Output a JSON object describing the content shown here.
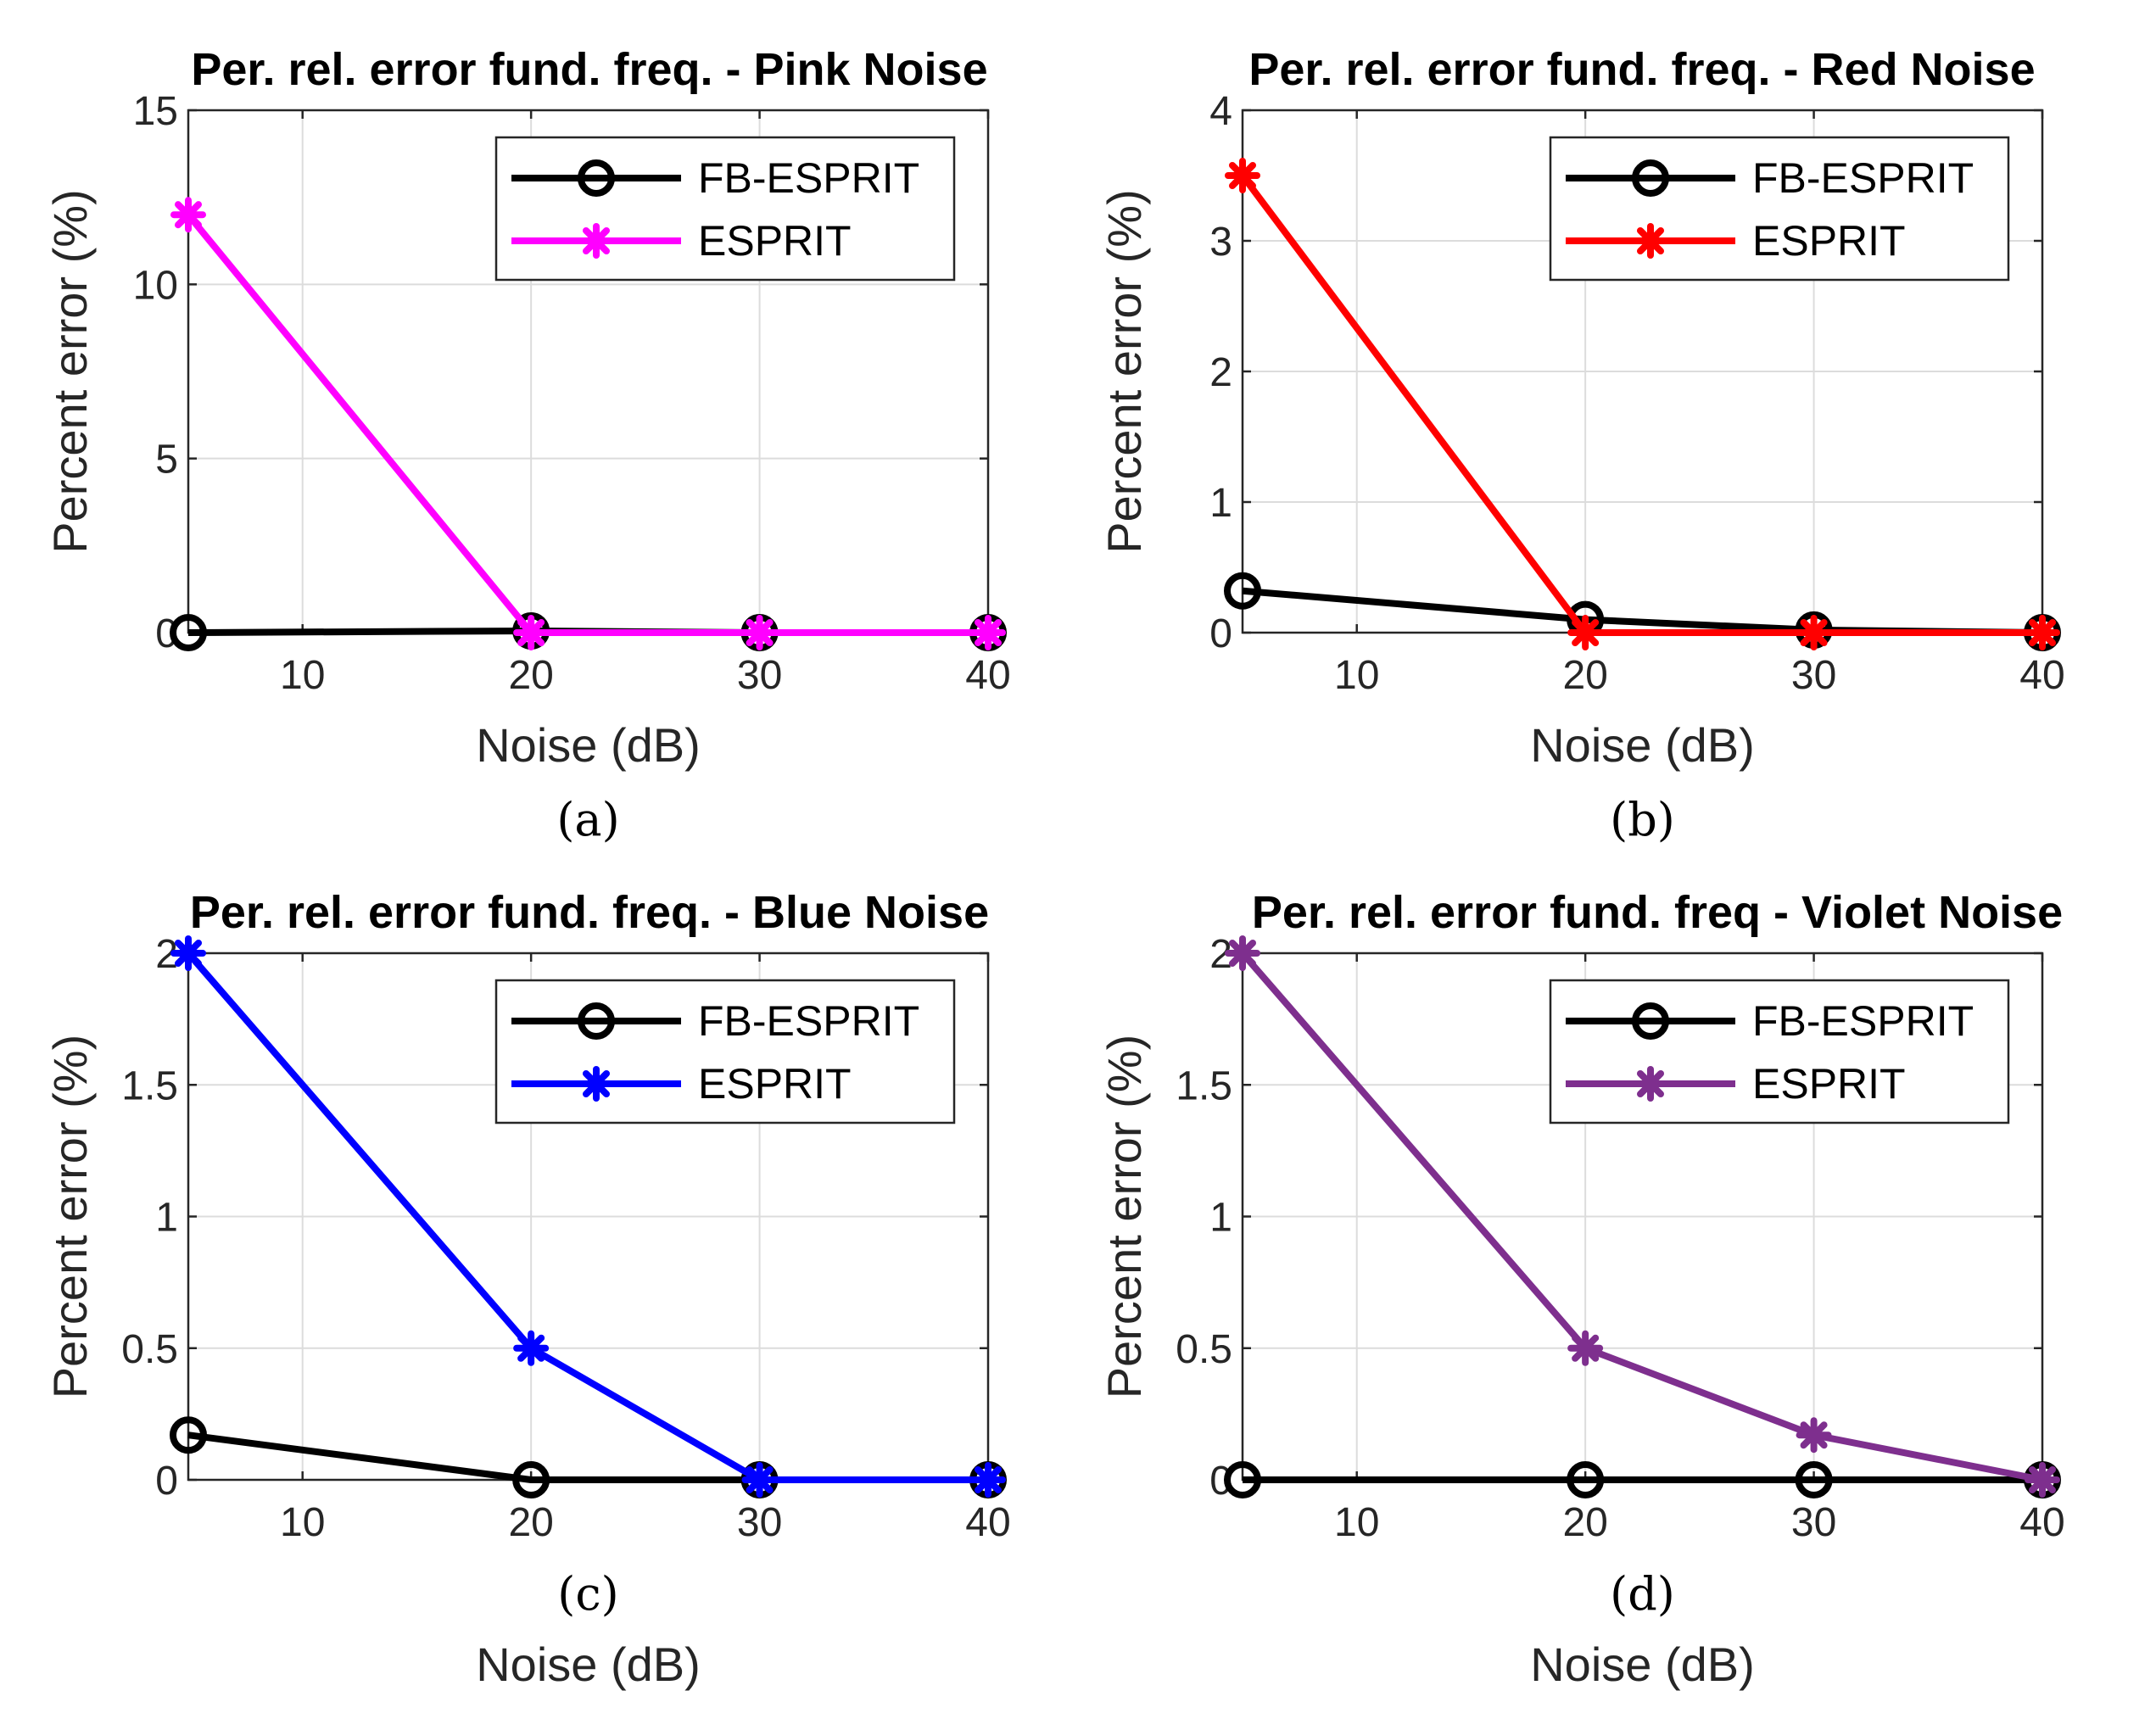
{
  "chart_data": [
    {
      "type": "line",
      "title": "Per. rel. error fund. freq. - Pink Noise",
      "caption": "(a)",
      "xlabel": "Noise (dB)",
      "ylabel": "Percent error (%)",
      "xlim": [
        5,
        40
      ],
      "ylim": [
        0,
        15
      ],
      "xticks": [
        10,
        20,
        30,
        40
      ],
      "yticks": [
        0,
        5,
        10,
        15
      ],
      "grid": true,
      "legend_position": "top-right",
      "series": [
        {
          "name": "FB-ESPRIT",
          "color": "#000000",
          "marker": "circle",
          "x": [
            5,
            20,
            30,
            40
          ],
          "y": [
            0.0,
            0.05,
            0.0,
            0.0
          ]
        },
        {
          "name": "ESPRIT",
          "color": "#ff00ff",
          "marker": "asterisk",
          "x": [
            5,
            20,
            30,
            40
          ],
          "y": [
            12.0,
            0.0,
            0.0,
            0.0
          ]
        }
      ]
    },
    {
      "type": "line",
      "title": "Per. rel. error fund. freq. - Red Noise",
      "caption": "(b)",
      "xlabel": "Noise (dB)",
      "ylabel": "Percent error (%)",
      "xlim": [
        5,
        40
      ],
      "ylim": [
        0,
        4
      ],
      "xticks": [
        10,
        20,
        30,
        40
      ],
      "yticks": [
        0,
        1,
        2,
        3,
        4
      ],
      "grid": true,
      "legend_position": "top-right",
      "series": [
        {
          "name": "FB-ESPRIT",
          "color": "#000000",
          "marker": "circle",
          "x": [
            5,
            20,
            30,
            40
          ],
          "y": [
            0.32,
            0.1,
            0.02,
            0.0
          ]
        },
        {
          "name": "ESPRIT",
          "color": "#ff0000",
          "marker": "asterisk",
          "x": [
            5,
            20,
            30,
            40
          ],
          "y": [
            3.5,
            0.0,
            0.0,
            0.0
          ]
        }
      ]
    },
    {
      "type": "line",
      "title": "Per. rel. error fund. freq. - Blue Noise",
      "caption": "(c)",
      "xlabel": "Noise (dB)",
      "ylabel": "Percent error (%)",
      "xlim": [
        5,
        40
      ],
      "ylim": [
        0,
        2
      ],
      "xticks": [
        10,
        20,
        30,
        40
      ],
      "yticks": [
        0,
        0.5,
        1,
        1.5,
        2
      ],
      "grid": true,
      "legend_position": "top-right",
      "series": [
        {
          "name": "FB-ESPRIT",
          "color": "#000000",
          "marker": "circle",
          "x": [
            5,
            20,
            30,
            40
          ],
          "y": [
            0.17,
            0.0,
            0.0,
            0.0
          ]
        },
        {
          "name": "ESPRIT",
          "color": "#0000ff",
          "marker": "asterisk",
          "x": [
            5,
            20,
            30,
            40
          ],
          "y": [
            2.0,
            0.5,
            0.0,
            0.0
          ]
        }
      ]
    },
    {
      "type": "line",
      "title": "Per. rel. error fund. freq - Violet Noise",
      "caption": "(d)",
      "xlabel": "Noise (dB)",
      "ylabel": "Percent error (%)",
      "xlim": [
        5,
        40
      ],
      "ylim": [
        0,
        2
      ],
      "xticks": [
        10,
        20,
        30,
        40
      ],
      "yticks": [
        0,
        0.5,
        1,
        1.5,
        2
      ],
      "grid": true,
      "legend_position": "top-right",
      "series": [
        {
          "name": "FB-ESPRIT",
          "color": "#000000",
          "marker": "circle",
          "x": [
            5,
            20,
            30,
            40
          ],
          "y": [
            0.0,
            0.0,
            0.0,
            0.0
          ]
        },
        {
          "name": "ESPRIT",
          "color": "#7e2f8e",
          "marker": "asterisk",
          "x": [
            5,
            20,
            30,
            40
          ],
          "y": [
            2.0,
            0.5,
            0.17,
            0.0
          ]
        }
      ]
    }
  ]
}
